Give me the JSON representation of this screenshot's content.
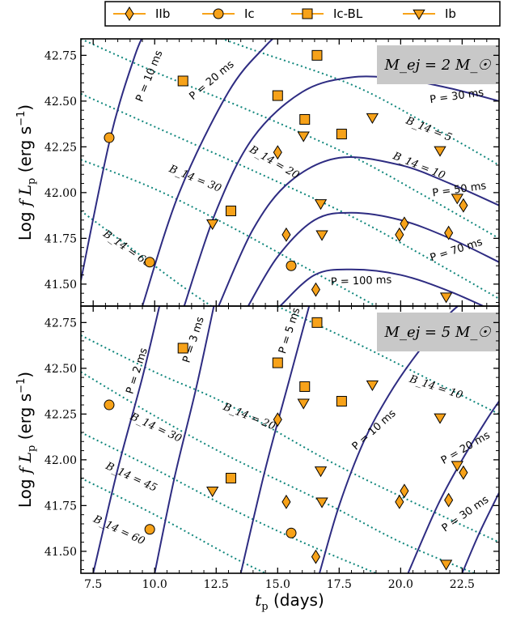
{
  "chart_data": {
    "type": "scatter",
    "x_axis": {
      "label": "t_p (days)",
      "range": [
        7.0,
        24.0
      ],
      "ticks": [
        7.5,
        10.0,
        12.5,
        15.0,
        17.5,
        20.0,
        22.5
      ],
      "tick_labels": [
        "7.5",
        "10.0",
        "12.5",
        "15.0",
        "17.5",
        "20.0",
        "22.5"
      ]
    },
    "y_axis": {
      "label": "Log f L_p (erg s⁻¹)",
      "range": [
        41.38,
        42.84
      ],
      "ticks": [
        41.5,
        41.75,
        42.0,
        42.25,
        42.5,
        42.75
      ],
      "tick_labels": [
        "41.50",
        "41.75",
        "42.00",
        "42.25",
        "42.50",
        "42.75"
      ]
    },
    "legend": {
      "placement": "top",
      "entries": [
        {
          "name": "IIb",
          "marker": "diamond"
        },
        {
          "name": "Ic",
          "marker": "circle"
        },
        {
          "name": "Ic-BL",
          "marker": "square"
        },
        {
          "name": "Ib",
          "marker": "triangle-down"
        }
      ]
    },
    "marker_color": "#f7a219",
    "marker_edge": "#000000",
    "p_curve_color": "#2e2c82",
    "b_curve_color": "#11877d",
    "series": [
      {
        "name": "IIb",
        "points": [
          [
            15.0,
            42.22
          ],
          [
            15.35,
            41.77
          ],
          [
            16.55,
            41.47
          ],
          [
            19.95,
            41.77
          ],
          [
            20.15,
            41.83
          ],
          [
            21.95,
            41.78
          ],
          [
            22.55,
            41.93
          ]
        ]
      },
      {
        "name": "Ic",
        "points": [
          [
            8.15,
            42.3
          ],
          [
            9.8,
            41.62
          ],
          [
            15.55,
            41.6
          ]
        ]
      },
      {
        "name": "Ic-BL",
        "points": [
          [
            11.15,
            42.61
          ],
          [
            13.1,
            41.9
          ],
          [
            15.0,
            42.53
          ],
          [
            16.1,
            42.4
          ],
          [
            16.6,
            42.75
          ],
          [
            17.6,
            42.32
          ]
        ]
      },
      {
        "name": "Ib",
        "points": [
          [
            12.35,
            41.83
          ],
          [
            16.05,
            42.31
          ],
          [
            16.75,
            41.94
          ],
          [
            16.8,
            41.77
          ],
          [
            18.85,
            42.41
          ],
          [
            21.6,
            42.23
          ],
          [
            21.85,
            41.43
          ],
          [
            22.3,
            41.97
          ]
        ]
      }
    ],
    "panels": [
      {
        "mass_label": "M_ej = 2 M_☉",
        "p_curves": [
          {
            "label": "P = 10 ms",
            "points": [
              [
                7.0,
                41.52
              ],
              [
                8.2,
                42.3
              ],
              [
                9.2,
                42.75
              ],
              [
                9.7,
                42.9
              ]
            ]
          },
          {
            "label": "P = 20 ms",
            "points": [
              [
                9.5,
                41.38
              ],
              [
                11.0,
                42.0
              ],
              [
                13.0,
                42.55
              ],
              [
                14.5,
                42.8
              ],
              [
                15.5,
                42.92
              ]
            ]
          },
          {
            "label": "P = 30 ms",
            "points": [
              [
                11.2,
                41.38
              ],
              [
                12.5,
                41.9
              ],
              [
                14.0,
                42.3
              ],
              [
                16.0,
                42.55
              ],
              [
                18.0,
                42.63
              ],
              [
                20.0,
                42.62
              ],
              [
                22.0,
                42.57
              ],
              [
                24.0,
                42.5
              ]
            ]
          },
          {
            "label": "P = 50 ms",
            "points": [
              [
                12.6,
                41.38
              ],
              [
                14.0,
                41.8
              ],
              [
                15.5,
                42.06
              ],
              [
                17.5,
                42.19
              ],
              [
                20.0,
                42.15
              ],
              [
                22.0,
                42.05
              ],
              [
                24.0,
                41.93
              ]
            ]
          },
          {
            "label": "P = 70 ms",
            "points": [
              [
                13.8,
                41.38
              ],
              [
                15.0,
                41.65
              ],
              [
                16.5,
                41.85
              ],
              [
                18.0,
                41.89
              ],
              [
                20.0,
                41.85
              ],
              [
                22.0,
                41.75
              ],
              [
                24.0,
                41.62
              ]
            ]
          },
          {
            "label": "P = 100 ms",
            "points": [
              [
                15.1,
                41.38
              ],
              [
                16.5,
                41.55
              ],
              [
                18.0,
                41.58
              ],
              [
                20.0,
                41.55
              ],
              [
                22.0,
                41.46
              ],
              [
                24.0,
                41.34
              ]
            ]
          }
        ],
        "b_curves": [
          {
            "label": "B_14 = 5",
            "points": [
              [
                11.5,
                42.9
              ],
              [
                14.0,
                42.78
              ],
              [
                18.0,
                42.59
              ],
              [
                21.0,
                42.38
              ],
              [
                24.0,
                42.15
              ]
            ]
          },
          {
            "label": "B_14 = 10",
            "points": [
              [
                7.0,
                42.84
              ],
              [
                10.0,
                42.66
              ],
              [
                14.0,
                42.44
              ],
              [
                18.0,
                42.2
              ],
              [
                21.0,
                41.98
              ],
              [
                24.0,
                41.75
              ]
            ]
          },
          {
            "label": "B_14 = 20",
            "points": [
              [
                7.0,
                42.54
              ],
              [
                10.0,
                42.36
              ],
              [
                14.0,
                42.12
              ],
              [
                18.0,
                41.87
              ],
              [
                21.0,
                41.65
              ],
              [
                24.0,
                41.42
              ]
            ]
          },
          {
            "label": "B_14 = 30",
            "points": [
              [
                7.0,
                42.18
              ],
              [
                10.0,
                42.02
              ],
              [
                13.0,
                41.82
              ],
              [
                16.0,
                41.6
              ],
              [
                19.0,
                41.38
              ]
            ]
          },
          {
            "label": "B_14 = 60",
            "points": [
              [
                7.0,
                41.9
              ],
              [
                9.0,
                41.7
              ],
              [
                11.0,
                41.5
              ],
              [
                12.3,
                41.38
              ]
            ]
          }
        ]
      },
      {
        "mass_label": "M_ej = 5 M_☉",
        "p_curves": [
          {
            "label": "P = 2 ms",
            "points": [
              [
                7.5,
                41.38
              ],
              [
                8.5,
                41.95
              ],
              [
                9.5,
                42.45
              ],
              [
                10.3,
                42.9
              ]
            ]
          },
          {
            "label": "P = 3 ms",
            "points": [
              [
                10.0,
                41.38
              ],
              [
                10.8,
                41.9
              ],
              [
                11.7,
                42.4
              ],
              [
                12.5,
                42.9
              ]
            ]
          },
          {
            "label": "P = 5 ms",
            "points": [
              [
                13.5,
                41.38
              ],
              [
                14.5,
                41.95
              ],
              [
                15.5,
                42.45
              ],
              [
                16.4,
                42.9
              ]
            ]
          },
          {
            "label": "P = 10 ms",
            "points": [
              [
                16.7,
                41.38
              ],
              [
                17.5,
                41.75
              ],
              [
                18.5,
                42.1
              ],
              [
                19.5,
                42.35
              ],
              [
                20.5,
                42.55
              ],
              [
                22.0,
                42.8
              ],
              [
                23.0,
                42.9
              ]
            ]
          },
          {
            "label": "P = 20 ms",
            "points": [
              [
                20.3,
                41.38
              ],
              [
                21.5,
                41.75
              ],
              [
                22.5,
                42.0
              ],
              [
                23.5,
                42.22
              ],
              [
                24.0,
                42.32
              ]
            ]
          },
          {
            "label": "P = 30 ms",
            "points": [
              [
                22.5,
                41.38
              ],
              [
                23.2,
                41.6
              ],
              [
                24.0,
                41.82
              ]
            ]
          }
        ],
        "b_curves": [
          {
            "label": "B_14 = 10",
            "points": [
              [
                14.0,
                42.9
              ],
              [
                18.0,
                42.65
              ],
              [
                21.0,
                42.45
              ],
              [
                24.0,
                42.25
              ]
            ]
          },
          {
            "label": "B_14 = 20",
            "points": [
              [
                7.0,
                42.68
              ],
              [
                10.0,
                42.48
              ],
              [
                13.0,
                42.3
              ],
              [
                17.0,
                42.0
              ],
              [
                20.0,
                41.8
              ],
              [
                24.0,
                41.55
              ]
            ]
          },
          {
            "label": "B_14 = 30",
            "points": [
              [
                7.0,
                42.48
              ],
              [
                10.0,
                42.24
              ],
              [
                13.0,
                42.02
              ],
              [
                17.0,
                41.76
              ],
              [
                20.0,
                41.55
              ],
              [
                23.0,
                41.38
              ]
            ]
          },
          {
            "label": "B_14 = 45",
            "points": [
              [
                7.0,
                42.15
              ],
              [
                10.0,
                41.95
              ],
              [
                13.0,
                41.74
              ],
              [
                16.0,
                41.55
              ],
              [
                19.0,
                41.38
              ]
            ]
          },
          {
            "label": "B_14 = 60",
            "points": [
              [
                7.0,
                41.9
              ],
              [
                10.0,
                41.7
              ],
              [
                13.0,
                41.48
              ],
              [
                14.5,
                41.38
              ]
            ]
          }
        ]
      }
    ]
  },
  "ui": {
    "x_title_main": "t",
    "x_title_sub": "p",
    "x_title_units": " (days)",
    "y_title_log": "Log ",
    "y_title_f": "f L",
    "y_title_sub": "p",
    "y_title_units": " (erg s",
    "y_title_exp": "−1",
    "y_title_close": ")"
  }
}
